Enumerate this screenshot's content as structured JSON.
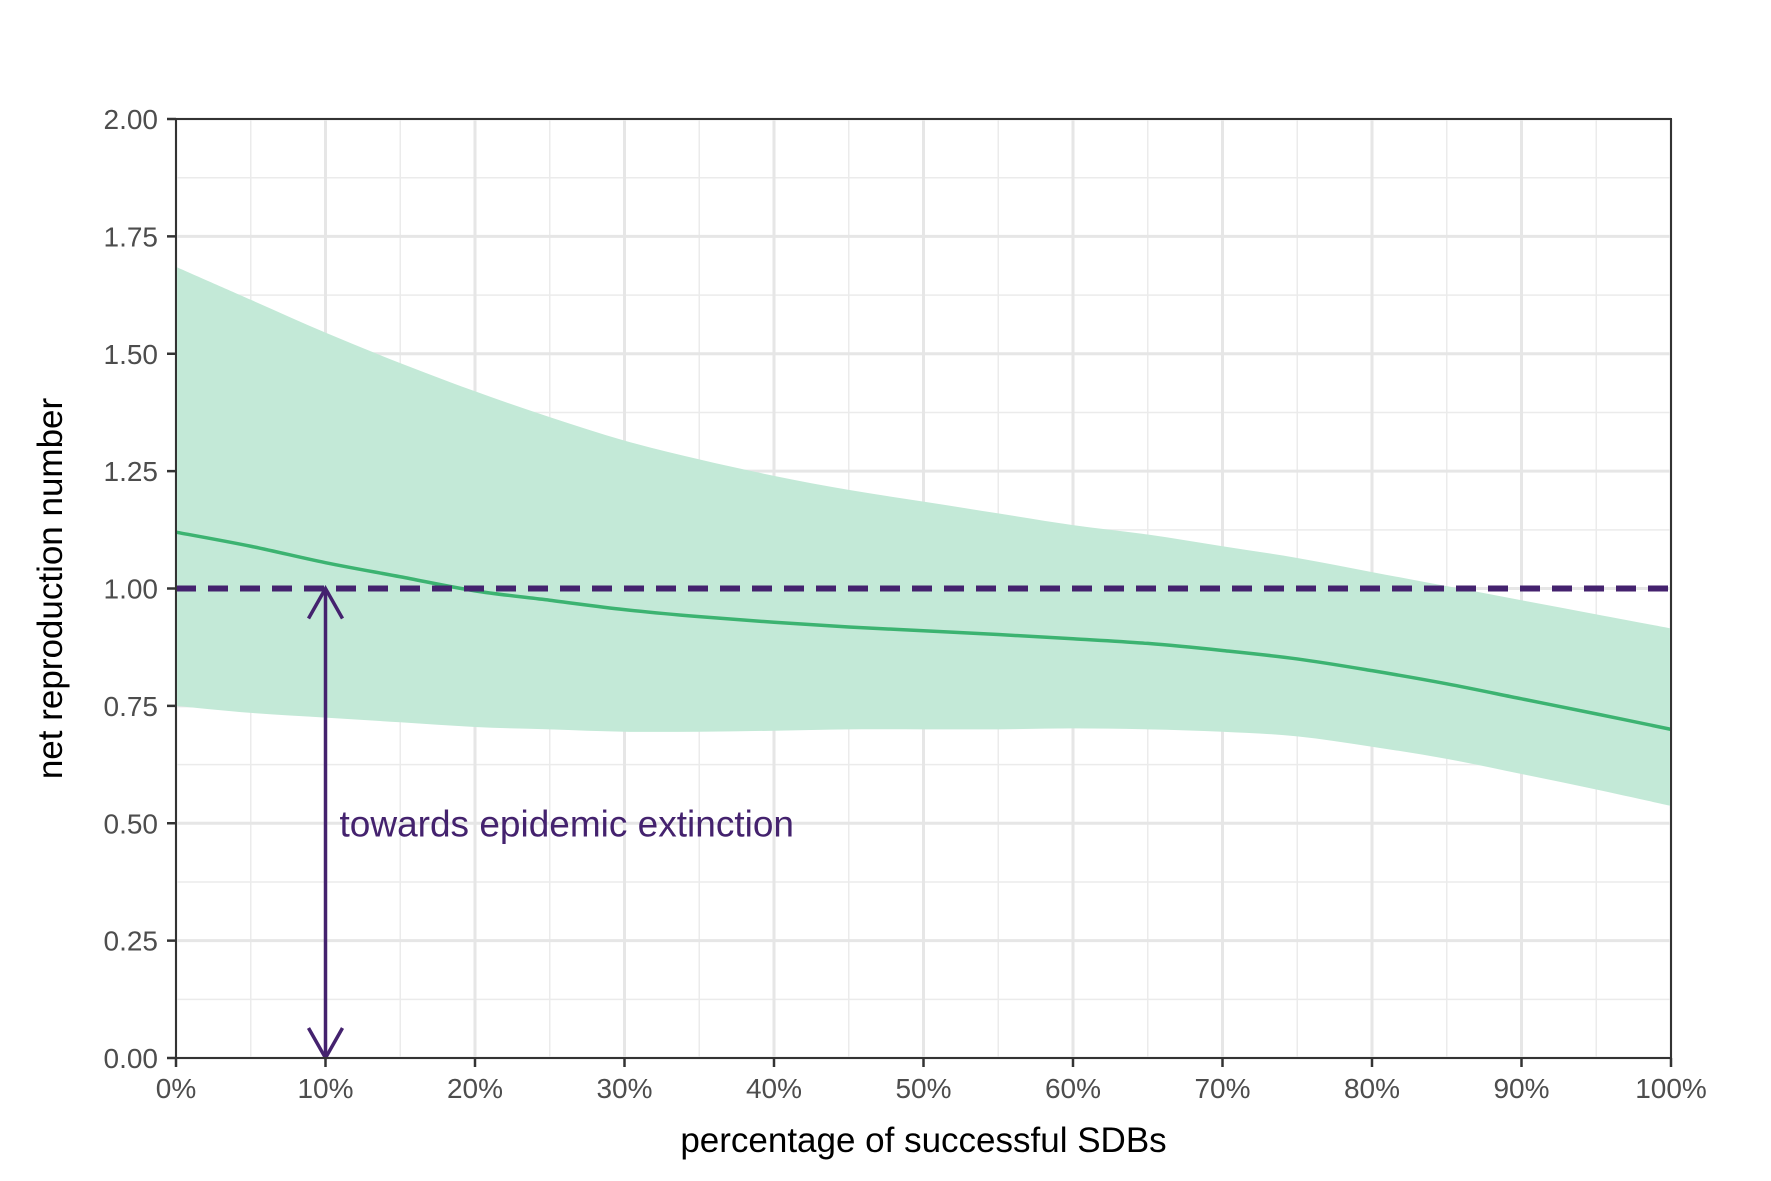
{
  "chart_data": {
    "type": "line",
    "title": "",
    "xlabel": "percentage of successful SDBs",
    "ylabel": "net reproduction number",
    "xlim": [
      0,
      1
    ],
    "ylim": [
      0,
      2
    ],
    "x_ticks": [
      0,
      0.1,
      0.2,
      0.3,
      0.4,
      0.5,
      0.6,
      0.7,
      0.8,
      0.9,
      1.0
    ],
    "x_tick_labels": [
      "0%",
      "10%",
      "20%",
      "30%",
      "40%",
      "50%",
      "60%",
      "70%",
      "80%",
      "90%",
      "100%"
    ],
    "y_ticks": [
      0,
      0.25,
      0.5,
      0.75,
      1.0,
      1.25,
      1.5,
      1.75,
      2.0
    ],
    "y_tick_labels": [
      "0.00",
      "0.25",
      "0.50",
      "0.75",
      "1.00",
      "1.25",
      "1.50",
      "1.75",
      "2.00"
    ],
    "grid": true,
    "series": [
      {
        "x": [
          0,
          0.05,
          0.1,
          0.15,
          0.2,
          0.25,
          0.3,
          0.35,
          0.4,
          0.45,
          0.5,
          0.55,
          0.6,
          0.65,
          0.7,
          0.75,
          0.8,
          0.85,
          0.9,
          0.95,
          1.0
        ],
        "values": [
          1.12,
          1.09,
          1.055,
          1.025,
          0.995,
          0.975,
          0.955,
          0.94,
          0.928,
          0.918,
          0.91,
          0.902,
          0.893,
          0.883,
          0.868,
          0.85,
          0.825,
          0.797,
          0.765,
          0.733,
          0.7
        ],
        "lower": [
          0.75,
          0.735,
          0.725,
          0.715,
          0.705,
          0.7,
          0.695,
          0.695,
          0.697,
          0.7,
          0.7,
          0.7,
          0.702,
          0.7,
          0.695,
          0.685,
          0.663,
          0.637,
          0.605,
          0.572,
          0.537
        ],
        "upper": [
          1.685,
          1.615,
          1.545,
          1.48,
          1.42,
          1.365,
          1.315,
          1.275,
          1.24,
          1.21,
          1.185,
          1.16,
          1.135,
          1.115,
          1.09,
          1.065,
          1.035,
          1.005,
          0.975,
          0.945,
          0.915
        ],
        "color": "#3cb371",
        "band_color": "#c3e9d7"
      }
    ],
    "reference_line": {
      "y": 1.0,
      "color": "#44226e",
      "style": "dashed"
    },
    "annotation": {
      "text": "towards epidemic extinction",
      "arrow_x": 0.1,
      "arrow_y_from": 0.0,
      "arrow_y_to": 1.0,
      "color": "#44226e"
    }
  }
}
